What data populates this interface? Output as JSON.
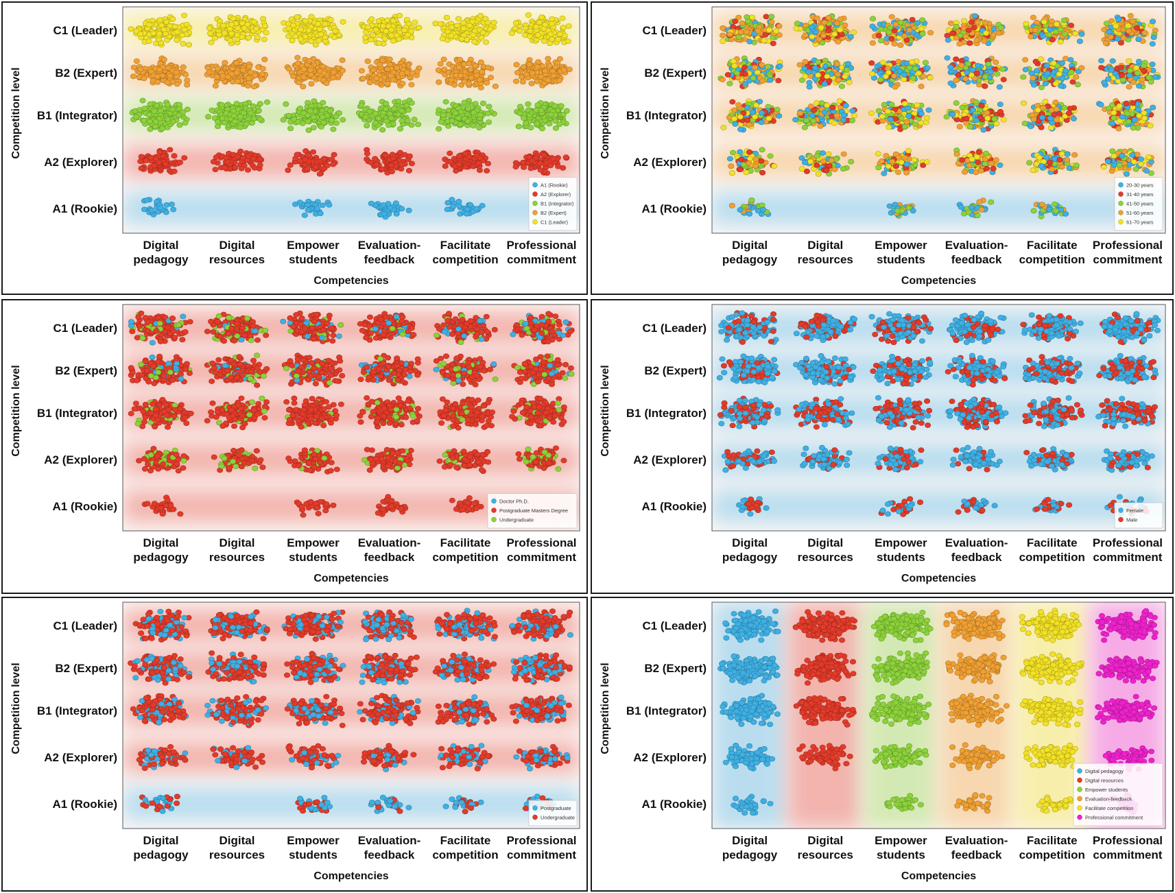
{
  "axis_labels": {
    "y_title": "Competition level",
    "x_title": "Competencies",
    "levels": [
      "C1 (Leader)",
      "B2 (Expert)",
      "B1 (Integrator)",
      "A2 (Explorer)",
      "A1 (Rookie)"
    ],
    "competencies": [
      [
        "Digital",
        "pedagogy"
      ],
      [
        "Digital",
        "resources"
      ],
      [
        "Empower",
        "students"
      ],
      [
        "Evaluation-",
        "feedback"
      ],
      [
        "Facilitate",
        "competition"
      ],
      [
        "Professional",
        "commitment"
      ]
    ]
  },
  "chart_data": [
    {
      "type": "scatter",
      "grouping": "competition level",
      "xlabel": "Competencies",
      "ylabel": "Competition level",
      "categories_x": [
        "Digital pedagogy",
        "Digital resources",
        "Empower students",
        "Evaluation-feedback",
        "Facilitate competition",
        "Professional commitment"
      ],
      "categories_y": [
        "C1 (Leader)",
        "B2 (Expert)",
        "B1 (Integrator)",
        "A2 (Explorer)",
        "A1 (Rookie)"
      ],
      "legend_position": "bottom-right",
      "series": [
        {
          "label": "A1 (Rookie)",
          "color": "#3fb0e4"
        },
        {
          "label": "A2 (Explorer)",
          "color": "#e33b2a"
        },
        {
          "label": "B1 (Integrator)",
          "color": "#8cd23a"
        },
        {
          "label": "B2 (Expert)",
          "color": "#f0a033"
        },
        {
          "label": "C1 (Leader)",
          "color": "#f2e126"
        }
      ]
    },
    {
      "type": "scatter",
      "grouping": "age",
      "xlabel": "Competencies",
      "ylabel": "Competition level",
      "categories_x": [
        "Digital pedagogy",
        "Digital resources",
        "Empower students",
        "Evaluation-feedback",
        "Facilitate competition",
        "Professional commitment"
      ],
      "categories_y": [
        "C1 (Leader)",
        "B2 (Expert)",
        "B1 (Integrator)",
        "A2 (Explorer)",
        "A1 (Rookie)"
      ],
      "legend_position": "bottom-right",
      "series": [
        {
          "label": "20-30 years",
          "color": "#3fb0e4"
        },
        {
          "label": "31-40 years",
          "color": "#e33b2a"
        },
        {
          "label": "41-50 years",
          "color": "#8cd23a"
        },
        {
          "label": "51-60 years",
          "color": "#f0a033"
        },
        {
          "label": "61-70 years",
          "color": "#f2e126"
        }
      ]
    },
    {
      "type": "scatter",
      "grouping": "education",
      "xlabel": "Competencies",
      "ylabel": "Competition level",
      "categories_x": [
        "Digital pedagogy",
        "Digital resources",
        "Empower students",
        "Evaluation-feedback",
        "Facilitate competition",
        "Professional commitment"
      ],
      "categories_y": [
        "C1 (Leader)",
        "B2 (Expert)",
        "B1 (Integrator)",
        "A2 (Explorer)",
        "A1 (Rookie)"
      ],
      "legend_position": "bottom-right",
      "series": [
        {
          "label": "Doctor Ph.D.",
          "color": "#3fb0e4"
        },
        {
          "label": "Postgraduate Masters Degree",
          "color": "#e33b2a"
        },
        {
          "label": "Undergraduate",
          "color": "#8cd23a"
        }
      ]
    },
    {
      "type": "scatter",
      "grouping": "gender",
      "xlabel": "Competencies",
      "ylabel": "Competition level",
      "categories_x": [
        "Digital pedagogy",
        "Digital resources",
        "Empower students",
        "Evaluation-feedback",
        "Facilitate competition",
        "Professional commitment"
      ],
      "categories_y": [
        "C1 (Leader)",
        "B2 (Expert)",
        "B1 (Integrator)",
        "A2 (Explorer)",
        "A1 (Rookie)"
      ],
      "legend_position": "bottom-right",
      "series": [
        {
          "label": "Female",
          "color": "#3fb0e4"
        },
        {
          "label": "Male",
          "color": "#e33b2a"
        }
      ]
    },
    {
      "type": "scatter",
      "grouping": "degree",
      "xlabel": "Competencies",
      "ylabel": "Competition level",
      "categories_x": [
        "Digital pedagogy",
        "Digital resources",
        "Empower students",
        "Evaluation-feedback",
        "Facilitate competition",
        "Professional commitment"
      ],
      "categories_y": [
        "C1 (Leader)",
        "B2 (Expert)",
        "B1 (Integrator)",
        "A2 (Explorer)",
        "A1 (Rookie)"
      ],
      "legend_position": "bottom-right",
      "series": [
        {
          "label": "Postgraduate",
          "color": "#3fb0e4"
        },
        {
          "label": "Undergraduate",
          "color": "#e33b2a"
        }
      ]
    },
    {
      "type": "scatter",
      "grouping": "competency",
      "xlabel": "Competencies",
      "ylabel": "Competition level",
      "categories_x": [
        "Digital pedagogy",
        "Digital resources",
        "Empower students",
        "Evaluation-feedback",
        "Facilitate competition",
        "Professional commitment"
      ],
      "categories_y": [
        "C1 (Leader)",
        "B2 (Expert)",
        "B1 (Integrator)",
        "A2 (Explorer)",
        "A1 (Rookie)"
      ],
      "legend_position": "bottom-right",
      "series": [
        {
          "label": "Digital pedagogy",
          "color": "#3fb0e4"
        },
        {
          "label": "Digital resources",
          "color": "#e33b2a"
        },
        {
          "label": "Empower students",
          "color": "#8cd23a"
        },
        {
          "label": "Evaluation-feedback",
          "color": "#f0a033"
        },
        {
          "label": "Facilitate competition",
          "color": "#f2e126"
        },
        {
          "label": "Professional commitment",
          "color": "#ee22cc"
        }
      ]
    }
  ]
}
